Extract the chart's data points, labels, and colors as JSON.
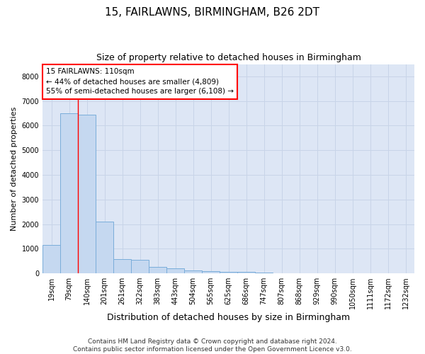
{
  "title": "15, FAIRLAWNS, BIRMINGHAM, B26 2DT",
  "subtitle": "Size of property relative to detached houses in Birmingham",
  "xlabel": "Distribution of detached houses by size in Birmingham",
  "ylabel": "Number of detached properties",
  "footer_line1": "Contains HM Land Registry data © Crown copyright and database right 2024.",
  "footer_line2": "Contains public sector information licensed under the Open Government Licence v3.0.",
  "categories": [
    "19sqm",
    "79sqm",
    "140sqm",
    "201sqm",
    "261sqm",
    "322sqm",
    "383sqm",
    "443sqm",
    "504sqm",
    "565sqm",
    "625sqm",
    "686sqm",
    "747sqm",
    "807sqm",
    "868sqm",
    "929sqm",
    "990sqm",
    "1050sqm",
    "1111sqm",
    "1172sqm",
    "1232sqm"
  ],
  "values": [
    1150,
    6500,
    6450,
    2100,
    580,
    540,
    250,
    190,
    130,
    95,
    70,
    55,
    40,
    10,
    5,
    3,
    2,
    1,
    1,
    0,
    0
  ],
  "bar_color": "#c5d8f0",
  "bar_edge_color": "#7aadda",
  "grid_color": "#c8d4e8",
  "background_color": "#dde6f5",
  "annotation_text": "15 FAIRLAWNS: 110sqm\n← 44% of detached houses are smaller (4,809)\n55% of semi-detached houses are larger (6,108) →",
  "annotation_box_color": "white",
  "annotation_box_edge": "red",
  "vline_x": 1.48,
  "vline_color": "red",
  "ylim": [
    0,
    8500
  ],
  "yticks": [
    0,
    1000,
    2000,
    3000,
    4000,
    5000,
    6000,
    7000,
    8000
  ],
  "title_fontsize": 11,
  "subtitle_fontsize": 9,
  "xlabel_fontsize": 9,
  "ylabel_fontsize": 8,
  "tick_fontsize": 7,
  "annotation_fontsize": 7.5,
  "footer_fontsize": 6.5
}
